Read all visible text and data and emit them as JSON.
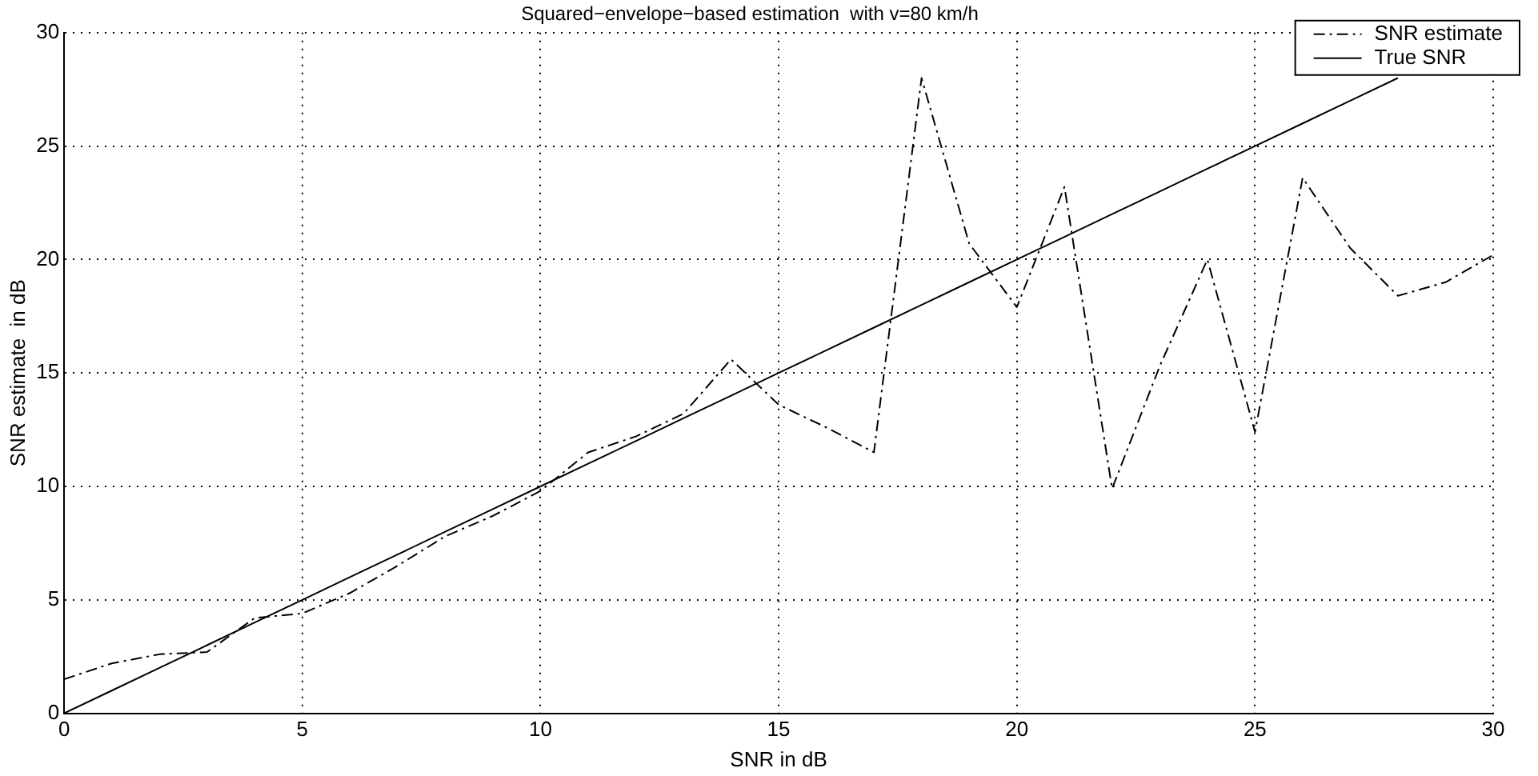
{
  "chart_data": {
    "type": "line",
    "title": "Squared−envelope−based estimation  with v=80 km/h",
    "xlabel": "SNR in dB",
    "ylabel": "SNR estimate  in dB",
    "x": [
      0,
      1,
      2,
      3,
      4,
      5,
      6,
      7,
      8,
      9,
      10,
      11,
      12,
      13,
      14,
      15,
      16,
      17,
      18,
      19,
      20,
      21,
      22,
      23,
      24,
      25,
      26,
      27,
      28,
      29,
      30
    ],
    "series": [
      {
        "name": "SNR estimate",
        "color": "#000000",
        "line_style": "dashed",
        "values": [
          1.5,
          2.2,
          2.6,
          2.7,
          4.2,
          4.4,
          5.3,
          6.5,
          7.8,
          8.7,
          9.8,
          11.5,
          12.2,
          13.2,
          15.6,
          13.6,
          12.6,
          11.5,
          28,
          20.7,
          17.9,
          23.2,
          9.9,
          15.3,
          20,
          12.4,
          23.6,
          20.5,
          18.4,
          19,
          20.2
        ]
      },
      {
        "name": "True SNR",
        "color": "#000000",
        "line_style": "solid",
        "values": [
          0,
          1,
          2,
          3,
          4,
          5,
          6,
          7,
          8,
          9,
          10,
          11,
          12,
          13,
          14,
          15,
          16,
          17,
          18,
          19,
          20,
          21,
          22,
          23,
          24,
          25,
          26,
          27,
          28,
          null,
          null
        ]
      }
    ],
    "xlim": [
      0,
      30
    ],
    "xticks": [
      0,
      5,
      10,
      15,
      20,
      25,
      30
    ],
    "ylim": [
      0,
      30
    ],
    "yticks": [
      0,
      5,
      10,
      15,
      20,
      25,
      30
    ],
    "grid": true,
    "legend": "top right",
    "marker": "none"
  }
}
